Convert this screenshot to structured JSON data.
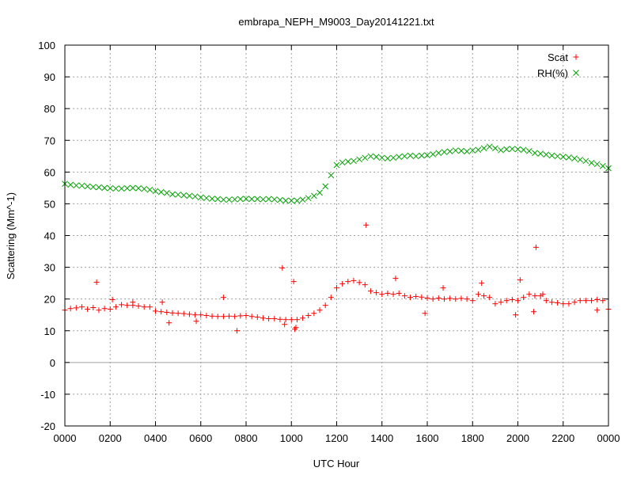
{
  "chart_data": {
    "type": "scatter",
    "title": "embrapa_NEPH_M9003_Day20141221.txt",
    "xlabel": "UTC Hour",
    "ylabel": "Scattering (Mm^-1)",
    "xlim": [
      0,
      24
    ],
    "ylim": [
      -20,
      100
    ],
    "grid": true,
    "legend_placement": "top-right",
    "x_ticks": [
      {
        "value": 0,
        "label": "0000"
      },
      {
        "value": 2,
        "label": "0200"
      },
      {
        "value": 4,
        "label": "0400"
      },
      {
        "value": 6,
        "label": "0600"
      },
      {
        "value": 8,
        "label": "0800"
      },
      {
        "value": 10,
        "label": "1000"
      },
      {
        "value": 12,
        "label": "1200"
      },
      {
        "value": 14,
        "label": "1400"
      },
      {
        "value": 16,
        "label": "1600"
      },
      {
        "value": 18,
        "label": "1800"
      },
      {
        "value": 20,
        "label": "2000"
      },
      {
        "value": 22,
        "label": "2200"
      },
      {
        "value": 24,
        "label": "0000"
      }
    ],
    "y_ticks": [
      100,
      90,
      80,
      70,
      60,
      50,
      40,
      30,
      20,
      10,
      0,
      -10,
      -20
    ],
    "series": [
      {
        "name": "Scat",
        "marker": "plus",
        "color": "#ff0000",
        "x": [
          0.0,
          0.25,
          0.5,
          0.75,
          1.0,
          1.25,
          1.5,
          1.75,
          2.0,
          2.25,
          2.5,
          2.75,
          3.0,
          3.25,
          3.5,
          3.75,
          4.0,
          4.25,
          4.5,
          4.75,
          5.0,
          5.25,
          5.5,
          5.75,
          6.0,
          6.25,
          6.5,
          6.75,
          7.0,
          7.25,
          7.5,
          7.75,
          8.0,
          8.25,
          8.5,
          8.75,
          9.0,
          9.25,
          9.5,
          9.75,
          10.0,
          10.25,
          10.5,
          10.75,
          11.0,
          11.25,
          11.5,
          11.75,
          12.0,
          12.25,
          12.5,
          12.75,
          13.0,
          13.25,
          13.5,
          13.75,
          14.0,
          14.25,
          14.5,
          14.75,
          15.0,
          15.25,
          15.5,
          15.75,
          16.0,
          16.25,
          16.5,
          16.75,
          17.0,
          17.25,
          17.5,
          17.75,
          18.0,
          18.25,
          18.5,
          18.75,
          19.0,
          19.25,
          19.5,
          19.75,
          20.0,
          20.25,
          20.5,
          20.75,
          21.0,
          21.25,
          21.5,
          21.75,
          22.0,
          22.25,
          22.5,
          22.75,
          23.0,
          23.25,
          23.5,
          23.75,
          24.0,
          1.4,
          2.1,
          3.0,
          4.3,
          4.6,
          5.8,
          7.0,
          7.6,
          9.6,
          9.7,
          10.1,
          10.2,
          10.15,
          13.3,
          14.6,
          15.9,
          16.7,
          18.4,
          19.9,
          20.1,
          20.8,
          20.7,
          21.1,
          23.5
        ],
        "y": [
          16.5,
          17.0,
          17.2,
          17.5,
          16.8,
          17.3,
          16.5,
          17.0,
          16.8,
          17.5,
          18.2,
          18.0,
          18.0,
          17.8,
          17.5,
          17.5,
          16.2,
          16.0,
          15.8,
          15.6,
          15.5,
          15.4,
          15.2,
          15.0,
          15.0,
          14.8,
          14.6,
          14.5,
          14.5,
          14.6,
          14.5,
          14.7,
          14.8,
          14.5,
          14.3,
          14.0,
          13.8,
          13.8,
          13.6,
          13.5,
          13.5,
          13.5,
          14.0,
          14.8,
          15.5,
          16.5,
          18.0,
          20.5,
          23.5,
          24.8,
          25.5,
          25.8,
          25.2,
          24.5,
          22.5,
          22.0,
          21.5,
          21.8,
          21.5,
          21.8,
          21.0,
          20.5,
          20.8,
          20.6,
          20.3,
          20.0,
          20.3,
          20.0,
          20.2,
          20.0,
          20.2,
          20.0,
          19.5,
          21.5,
          21.0,
          20.5,
          18.5,
          19.0,
          19.5,
          19.8,
          19.5,
          20.5,
          21.5,
          21.0,
          21.0,
          19.5,
          19.0,
          18.8,
          18.5,
          18.5,
          19.0,
          19.5,
          19.5,
          19.5,
          19.8,
          19.5,
          16.8,
          25.3,
          19.8,
          19.0,
          19.0,
          12.5,
          13.0,
          20.5,
          10.0,
          29.8,
          12.0,
          25.5,
          11.0,
          10.5,
          43.3,
          26.5,
          15.5,
          23.5,
          25.0,
          15.0,
          26.0,
          36.3,
          16.0,
          21.5,
          16.5
        ]
      },
      {
        "name": "RH(%)",
        "marker": "cross",
        "color": "#00a000",
        "x": [
          0.0,
          0.25,
          0.5,
          0.75,
          1.0,
          1.25,
          1.5,
          1.75,
          2.0,
          2.25,
          2.5,
          2.75,
          3.0,
          3.25,
          3.5,
          3.75,
          4.0,
          4.25,
          4.5,
          4.75,
          5.0,
          5.25,
          5.5,
          5.75,
          6.0,
          6.25,
          6.5,
          6.75,
          7.0,
          7.25,
          7.5,
          7.75,
          8.0,
          8.25,
          8.5,
          8.75,
          9.0,
          9.25,
          9.5,
          9.75,
          10.0,
          10.25,
          10.5,
          10.75,
          11.0,
          11.25,
          11.5,
          11.75,
          12.0,
          12.25,
          12.5,
          12.75,
          13.0,
          13.25,
          13.5,
          13.75,
          14.0,
          14.25,
          14.5,
          14.75,
          15.0,
          15.25,
          15.5,
          15.75,
          16.0,
          16.25,
          16.5,
          16.75,
          17.0,
          17.25,
          17.5,
          17.75,
          18.0,
          18.25,
          18.5,
          18.75,
          19.0,
          19.25,
          19.5,
          19.75,
          20.0,
          20.25,
          20.5,
          20.75,
          21.0,
          21.25,
          21.5,
          21.75,
          22.0,
          22.25,
          22.5,
          22.75,
          23.0,
          23.25,
          23.5,
          23.75,
          24.0
        ],
        "y": [
          56.3,
          56.0,
          55.8,
          55.7,
          55.5,
          55.3,
          55.2,
          55.0,
          54.9,
          54.8,
          54.8,
          54.9,
          55.0,
          54.9,
          54.7,
          54.4,
          54.0,
          53.7,
          53.4,
          53.0,
          52.9,
          52.7,
          52.5,
          52.3,
          52.0,
          51.8,
          51.6,
          51.5,
          51.3,
          51.3,
          51.4,
          51.5,
          51.6,
          51.5,
          51.5,
          51.4,
          51.5,
          51.4,
          51.2,
          51.0,
          51.0,
          51.0,
          51.3,
          51.8,
          52.5,
          53.5,
          55.5,
          59.0,
          62.2,
          63.0,
          63.3,
          63.5,
          64.0,
          64.5,
          65.0,
          64.8,
          64.5,
          64.3,
          64.5,
          64.8,
          65.0,
          65.2,
          65.0,
          65.2,
          65.3,
          65.6,
          66.0,
          66.3,
          66.5,
          66.8,
          66.7,
          66.5,
          66.8,
          67.0,
          67.5,
          68.0,
          67.5,
          66.9,
          67.2,
          67.3,
          67.2,
          67.0,
          66.6,
          66.0,
          65.8,
          65.5,
          65.2,
          65.0,
          64.8,
          64.6,
          64.3,
          63.9,
          63.5,
          62.9,
          62.5,
          61.9,
          61.2
        ]
      }
    ]
  }
}
